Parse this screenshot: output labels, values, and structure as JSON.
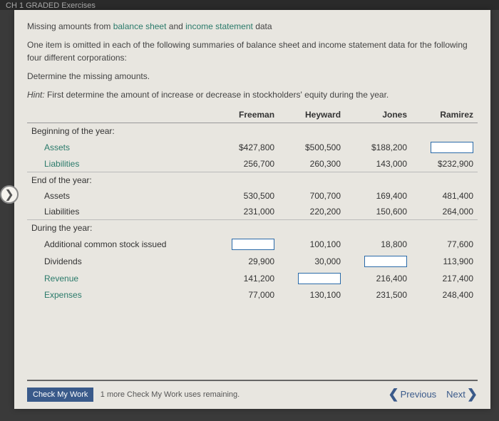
{
  "topBar": "CH 1 GRADED Exercises",
  "title": {
    "pre": "Missing amounts from ",
    "l1": "balance sheet",
    "mid": " and ",
    "l2": "income statement",
    "post": " data"
  },
  "para1": {
    "a": "One item is omitted in each of the following summaries of balance sheet and income statement data for the following four different ",
    "b": "corporations",
    "c": ":"
  },
  "instr": "Determine the missing amounts.",
  "hint": {
    "label": "Hint:",
    "a": " First determine the amount of increase or decrease in ",
    "b": "stockholders' equity",
    "c": " during the year."
  },
  "cols": {
    "c1": "Freeman",
    "c2": "Heyward",
    "c3": "Jones",
    "c4": "Ramirez"
  },
  "sections": {
    "begin": "Beginning of the year:",
    "end": "End of the year:",
    "during": "During the year:"
  },
  "rows": {
    "assets": "Assets",
    "liab": "Liabilities",
    "addstock": "Additional common stock issued",
    "div": "Dividends",
    "rev": "Revenue",
    "exp": "Expenses"
  },
  "vals": {
    "bAssets": {
      "f": "$427,800",
      "h": "$500,500",
      "j": "$188,200"
    },
    "bLiab": {
      "f": "256,700",
      "h": "260,300",
      "j": "143,000",
      "r": "$232,900"
    },
    "eAssets": {
      "f": "530,500",
      "h": "700,700",
      "j": "169,400",
      "r": "481,400"
    },
    "eLiab": {
      "f": "231,000",
      "h": "220,200",
      "j": "150,600",
      "r": "264,000"
    },
    "stock": {
      "h": "100,100",
      "j": "18,800",
      "r": "77,600"
    },
    "div": {
      "f": "29,900",
      "h": "30,000",
      "r": "113,900"
    },
    "rev": {
      "f": "141,200",
      "j": "216,400",
      "r": "217,400"
    },
    "exp": {
      "f": "77,000",
      "h": "130,100",
      "j": "231,500",
      "r": "248,400"
    }
  },
  "footer": {
    "check": "Check My Work",
    "remain": "1 more Check My Work uses remaining.",
    "prev": "Previous",
    "next": "Next"
  }
}
